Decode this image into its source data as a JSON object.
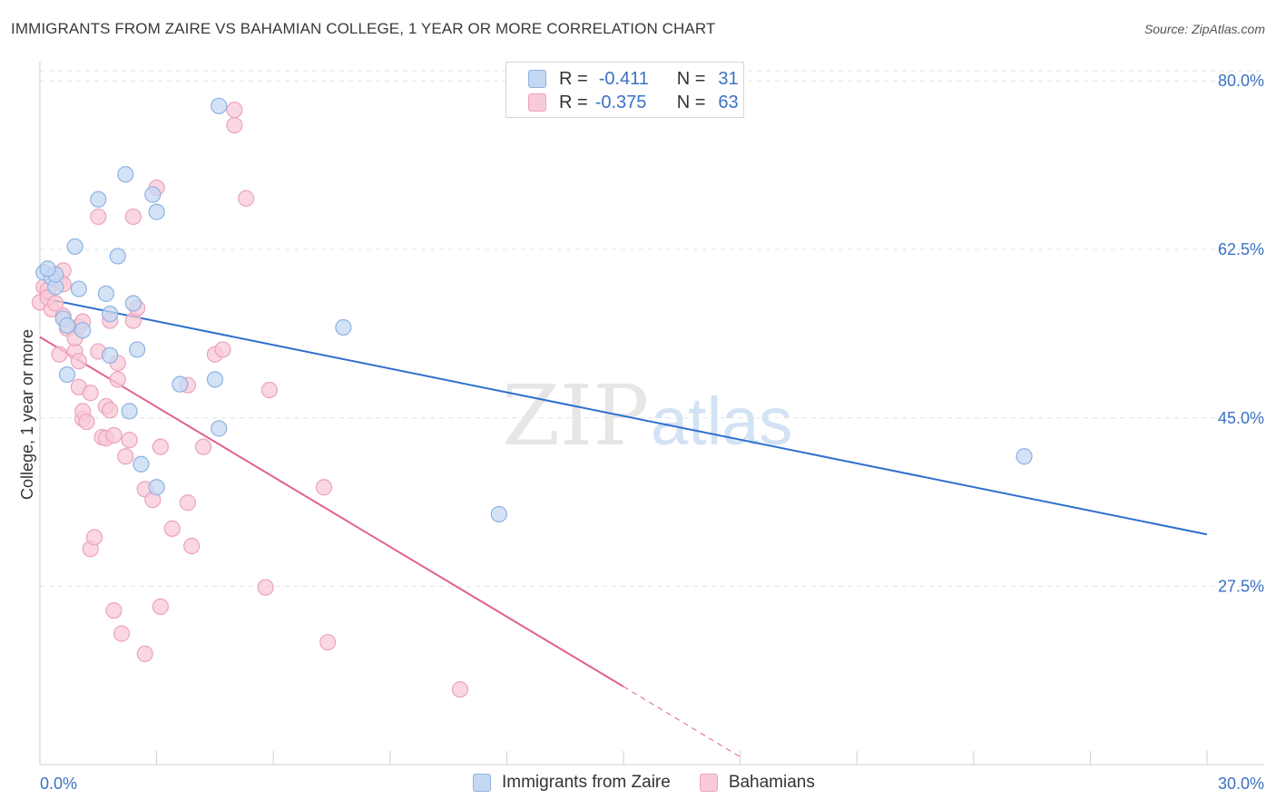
{
  "header": {
    "title": "IMMIGRANTS FROM ZAIRE VS BAHAMIAN COLLEGE, 1 YEAR OR MORE CORRELATION CHART",
    "source": "Source: ZipAtlas.com"
  },
  "legend_top": {
    "rows": [
      {
        "r_label": "R =",
        "r_value": "-0.411",
        "n_label": "N =",
        "n_value": "31"
      },
      {
        "r_label": "R =",
        "r_value": "-0.375",
        "n_label": "N =",
        "n_value": "63"
      }
    ]
  },
  "legend_bottom": {
    "items": [
      "Immigrants from Zaire",
      "Bahamians"
    ]
  },
  "watermark": {
    "zip": "ZIP",
    "atlas": "atlas"
  },
  "colors": {
    "blue_fill": "#c5d8f3",
    "blue_stroke": "#8db2e3",
    "blue_line": "#2e6fd0",
    "pink_fill": "#f8cad7",
    "pink_stroke": "#eca3b9",
    "pink_line": "#e0628c",
    "tick_label": "#3a72c4",
    "grid": "#e2e2e2"
  },
  "chart_data": {
    "type": "scatter",
    "title": "IMMIGRANTS FROM ZAIRE VS BAHAMIAN COLLEGE, 1 YEAR OR MORE CORRELATION CHART",
    "xlabel": "",
    "ylabel": "College, 1 year or more",
    "xlim": [
      0,
      30
    ],
    "ylim": [
      9,
      82
    ],
    "x_tick_labels": [
      "0.0%",
      "30.0%"
    ],
    "y_ticks": [
      27.5,
      45.0,
      62.5,
      80.0
    ],
    "y_tick_labels": [
      "27.5%",
      "45.0%",
      "62.5%",
      "80.0%"
    ],
    "grid": true,
    "legend_position": "bottom",
    "series": [
      {
        "name": "Immigrants from Zaire",
        "color": "#c5d8f3",
        "points": [
          [
            0.1,
            60.1
          ],
          [
            0.3,
            59.6
          ],
          [
            0.4,
            58.6
          ],
          [
            0.6,
            55.3
          ],
          [
            0.7,
            54.6
          ],
          [
            0.7,
            49.5
          ],
          [
            0.9,
            62.8
          ],
          [
            1.0,
            58.4
          ],
          [
            1.1,
            54.1
          ],
          [
            1.5,
            67.7
          ],
          [
            1.7,
            57.9
          ],
          [
            1.8,
            51.5
          ],
          [
            1.8,
            55.8
          ],
          [
            2.0,
            61.8
          ],
          [
            2.2,
            70.3
          ],
          [
            2.3,
            45.7
          ],
          [
            2.4,
            56.9
          ],
          [
            2.5,
            52.1
          ],
          [
            2.6,
            40.2
          ],
          [
            2.9,
            68.2
          ],
          [
            3.0,
            66.4
          ],
          [
            3.0,
            37.8
          ],
          [
            3.6,
            48.5
          ],
          [
            4.5,
            49.0
          ],
          [
            4.6,
            43.9
          ],
          [
            4.6,
            77.4
          ],
          [
            7.8,
            54.4
          ],
          [
            11.8,
            35.0
          ],
          [
            25.3,
            41.0
          ],
          [
            0.4,
            59.9
          ],
          [
            0.2,
            60.5
          ]
        ]
      },
      {
        "name": "Bahamians",
        "color": "#f8cad7",
        "points": [
          [
            0.0,
            57.0
          ],
          [
            0.1,
            58.6
          ],
          [
            0.2,
            58.3
          ],
          [
            0.3,
            56.3
          ],
          [
            0.5,
            59.2
          ],
          [
            0.6,
            60.3
          ],
          [
            0.6,
            58.9
          ],
          [
            0.5,
            51.6
          ],
          [
            0.6,
            55.6
          ],
          [
            0.7,
            54.3
          ],
          [
            0.9,
            51.9
          ],
          [
            0.9,
            53.3
          ],
          [
            1.0,
            50.9
          ],
          [
            1.0,
            54.5
          ],
          [
            1.0,
            48.2
          ],
          [
            1.1,
            44.9
          ],
          [
            1.1,
            45.7
          ],
          [
            1.2,
            44.6
          ],
          [
            1.3,
            47.6
          ],
          [
            1.3,
            31.4
          ],
          [
            1.4,
            32.6
          ],
          [
            1.5,
            65.9
          ],
          [
            1.5,
            51.9
          ],
          [
            1.6,
            43.0
          ],
          [
            1.7,
            46.2
          ],
          [
            1.7,
            42.9
          ],
          [
            1.8,
            55.1
          ],
          [
            1.8,
            45.8
          ],
          [
            1.9,
            43.2
          ],
          [
            1.9,
            25.0
          ],
          [
            2.0,
            50.7
          ],
          [
            2.0,
            49.0
          ],
          [
            2.1,
            22.6
          ],
          [
            2.2,
            41.0
          ],
          [
            2.3,
            42.7
          ],
          [
            2.4,
            65.9
          ],
          [
            2.4,
            55.1
          ],
          [
            2.5,
            56.4
          ],
          [
            2.7,
            37.6
          ],
          [
            2.7,
            20.5
          ],
          [
            2.9,
            36.5
          ],
          [
            3.0,
            68.9
          ],
          [
            3.1,
            25.4
          ],
          [
            3.1,
            42.0
          ],
          [
            3.4,
            33.5
          ],
          [
            3.8,
            36.2
          ],
          [
            3.8,
            48.4
          ],
          [
            3.9,
            31.7
          ],
          [
            4.2,
            42.0
          ],
          [
            4.5,
            51.6
          ],
          [
            4.7,
            52.1
          ],
          [
            5.0,
            75.4
          ],
          [
            5.0,
            77.0
          ],
          [
            5.3,
            67.8
          ],
          [
            5.8,
            27.4
          ],
          [
            5.9,
            47.9
          ],
          [
            7.3,
            37.8
          ],
          [
            7.4,
            21.7
          ],
          [
            10.8,
            16.8
          ],
          [
            0.3,
            59.6
          ],
          [
            0.2,
            57.5
          ],
          [
            0.4,
            56.9
          ],
          [
            1.1,
            55.0
          ]
        ]
      }
    ],
    "trendlines": [
      {
        "series": "Immigrants from Zaire",
        "x": [
          0,
          30
        ],
        "y": [
          57.5,
          32.9
        ]
      },
      {
        "series": "Bahamians",
        "x": [
          0,
          15
        ],
        "y": [
          53.4,
          17.1
        ],
        "dashed_x": [
          15,
          18
        ],
        "dashed_y": [
          17.1,
          9.8
        ]
      }
    ]
  }
}
